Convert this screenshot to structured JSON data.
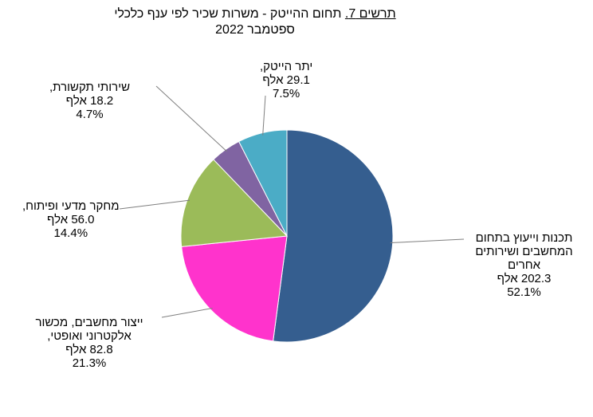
{
  "title": {
    "prefix": "תרשים 7.",
    "main": "תחום ההייטק - משרות שכיר לפי ענף כלכלי",
    "sub": "ספטמבר 2022"
  },
  "chart_data": {
    "type": "pie",
    "title": "תחום ההייטק - משרות שכיר לפי ענף כלכלי ספטמבר 2022",
    "unit": "אלף",
    "slices": [
      {
        "name": "תכנות וייעוץ בתחום המחשבים ושירותים אחרים",
        "value": 202.3,
        "value_label": "202.3 אלף",
        "pct": "52.1%",
        "color": "#355E8F"
      },
      {
        "name": "ייצור מחשבים, מכשור אלקטרוני ואופטי,",
        "value": 82.8,
        "value_label": "82.8 אלף",
        "pct": "21.3%",
        "color": "#FF33CC"
      },
      {
        "name": "מחקר מדעי ופיתוח,",
        "value": 56.0,
        "value_label": "56.0 אלף",
        "pct": "14.4%",
        "color": "#9BBB59"
      },
      {
        "name": "שירותי תקשורת,",
        "value": 18.2,
        "value_label": "18.2 אלף",
        "pct": "4.7%",
        "color": "#8064A2"
      },
      {
        "name": "יתר הייטק,",
        "value": 29.1,
        "value_label": "29.1 אלף",
        "pct": "7.5%",
        "color": "#4BACC6"
      }
    ]
  }
}
